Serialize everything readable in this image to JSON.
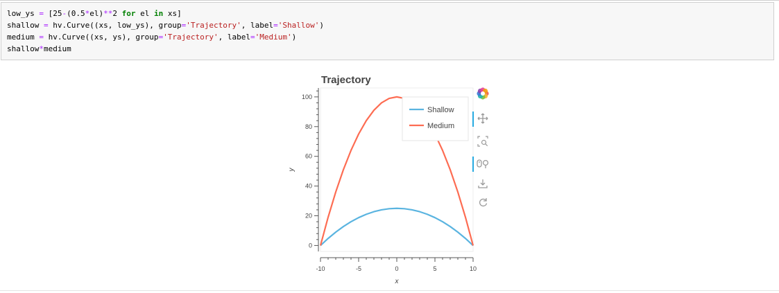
{
  "code": {
    "lines": [
      [
        {
          "t": "low_ys "
        },
        {
          "t": "=",
          "c": "o"
        },
        {
          "t": " [25"
        },
        {
          "t": "-",
          "c": "o"
        },
        {
          "t": "(0.5"
        },
        {
          "t": "*",
          "c": "o"
        },
        {
          "t": "el)"
        },
        {
          "t": "**",
          "c": "o"
        },
        {
          "t": "2 "
        },
        {
          "t": "for",
          "c": "k"
        },
        {
          "t": " el "
        },
        {
          "t": "in",
          "c": "k"
        },
        {
          "t": " xs]"
        }
      ],
      [
        {
          "t": "shallow "
        },
        {
          "t": "=",
          "c": "o"
        },
        {
          "t": " hv.Curve((xs, low_ys), group"
        },
        {
          "t": "=",
          "c": "o"
        },
        {
          "t": "'Trajectory'",
          "c": "s"
        },
        {
          "t": ", label"
        },
        {
          "t": "=",
          "c": "o"
        },
        {
          "t": "'Shallow'",
          "c": "s"
        },
        {
          "t": ")"
        }
      ],
      [
        {
          "t": "medium "
        },
        {
          "t": "=",
          "c": "o"
        },
        {
          "t": " hv.Curve((xs, ys), group"
        },
        {
          "t": "=",
          "c": "o"
        },
        {
          "t": "'Trajectory'",
          "c": "s"
        },
        {
          "t": ", label"
        },
        {
          "t": "=",
          "c": "o"
        },
        {
          "t": "'Medium'",
          "c": "s"
        },
        {
          "t": ")"
        }
      ],
      [
        {
          "t": "shallow"
        },
        {
          "t": "*",
          "c": "o"
        },
        {
          "t": "medium"
        }
      ]
    ]
  },
  "toolbar": {
    "tools": [
      {
        "icon": "bokeh-logo-icon",
        "interactable": false
      },
      {
        "icon": "pan-icon",
        "interactable": true,
        "active": true
      },
      {
        "icon": "box-zoom-icon",
        "interactable": true,
        "active": false
      },
      {
        "icon": "wheel-zoom-icon",
        "interactable": true,
        "active": true
      },
      {
        "icon": "save-icon",
        "interactable": true,
        "active": false
      },
      {
        "icon": "reset-icon",
        "interactable": true,
        "active": false
      }
    ]
  },
  "chart_data": {
    "type": "line",
    "title": "Trajectory",
    "xlabel": "x",
    "ylabel": "y",
    "xlim": [
      -10,
      10
    ],
    "ylim": [
      -4,
      106
    ],
    "xticks": [
      -10,
      -5,
      0,
      5,
      10
    ],
    "yticks": [
      0,
      20,
      40,
      60,
      80,
      100
    ],
    "grid": false,
    "legend": "top-right",
    "series": [
      {
        "name": "Shallow",
        "color": "#5ab4e0",
        "x": [
          -10,
          -9,
          -8,
          -7,
          -6,
          -5,
          -4,
          -3,
          -2,
          -1,
          0,
          1,
          2,
          3,
          4,
          5,
          6,
          7,
          8,
          9,
          10
        ],
        "y": [
          0,
          4.75,
          9,
          12.75,
          16,
          18.75,
          21,
          22.75,
          24,
          24.75,
          25,
          24.75,
          24,
          22.75,
          21,
          18.75,
          16,
          12.75,
          9,
          4.75,
          0
        ]
      },
      {
        "name": "Medium",
        "color": "#fd6c52",
        "x": [
          -10,
          -9,
          -8,
          -7,
          -6,
          -5,
          -4,
          -3,
          -2,
          -1,
          0,
          1,
          2,
          3,
          4,
          5,
          6,
          7,
          8,
          9,
          10
        ],
        "y": [
          0,
          19,
          36,
          51,
          64,
          75,
          84,
          91,
          96,
          99,
          100,
          99,
          96,
          91,
          84,
          75,
          64,
          51,
          36,
          19,
          0
        ]
      }
    ]
  }
}
